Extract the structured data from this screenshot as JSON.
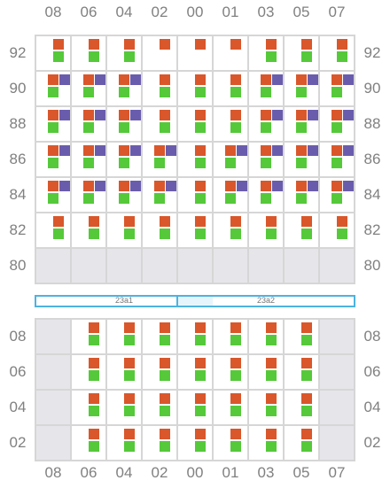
{
  "colors": {
    "orange": "#d9572b",
    "green": "#55c93a",
    "purple": "#6a5cad",
    "corridor": "#4db3e0",
    "empty_cell": "#e6e6ea"
  },
  "columns": [
    "08",
    "06",
    "04",
    "02",
    "00",
    "01",
    "03",
    "05",
    "07"
  ],
  "top_block": {
    "rows": [
      "92",
      "90",
      "88",
      "86",
      "84",
      "82",
      "80"
    ],
    "cells": [
      [
        "og",
        "og",
        "og",
        "o",
        "o",
        "o",
        "og",
        "og",
        "og"
      ],
      [
        "opg",
        "opg",
        "opg",
        "og",
        "og",
        "og",
        "opg",
        "opg",
        "opg"
      ],
      [
        "opg",
        "opg",
        "opg",
        "og",
        "og",
        "og",
        "opg",
        "opg",
        "opg"
      ],
      [
        "opg",
        "opg",
        "opg",
        "opg",
        "og",
        "opg",
        "opg",
        "opg",
        "opg"
      ],
      [
        "opg",
        "opg",
        "opg",
        "opg",
        "og",
        "opg",
        "opg",
        "opg",
        "opg"
      ],
      [
        "og",
        "og",
        "og",
        "og",
        "og",
        "og",
        "og",
        "og",
        "og"
      ],
      [
        "x",
        "x",
        "x",
        "x",
        "x",
        "x",
        "x",
        "x",
        "x"
      ]
    ]
  },
  "corridor": {
    "left_label": "23a1",
    "right_label": "23a2"
  },
  "bottom_block": {
    "rows": [
      "08",
      "06",
      "04",
      "02"
    ],
    "cells": [
      [
        "x",
        "og",
        "og",
        "og",
        "og",
        "og",
        "og",
        "og",
        "x"
      ],
      [
        "x",
        "og",
        "og",
        "og",
        "og",
        "og",
        "og",
        "og",
        "x"
      ],
      [
        "x",
        "og",
        "og",
        "og",
        "og",
        "og",
        "og",
        "og",
        "x"
      ],
      [
        "x",
        "og",
        "og",
        "og",
        "og",
        "og",
        "og",
        "og",
        "x"
      ]
    ]
  }
}
